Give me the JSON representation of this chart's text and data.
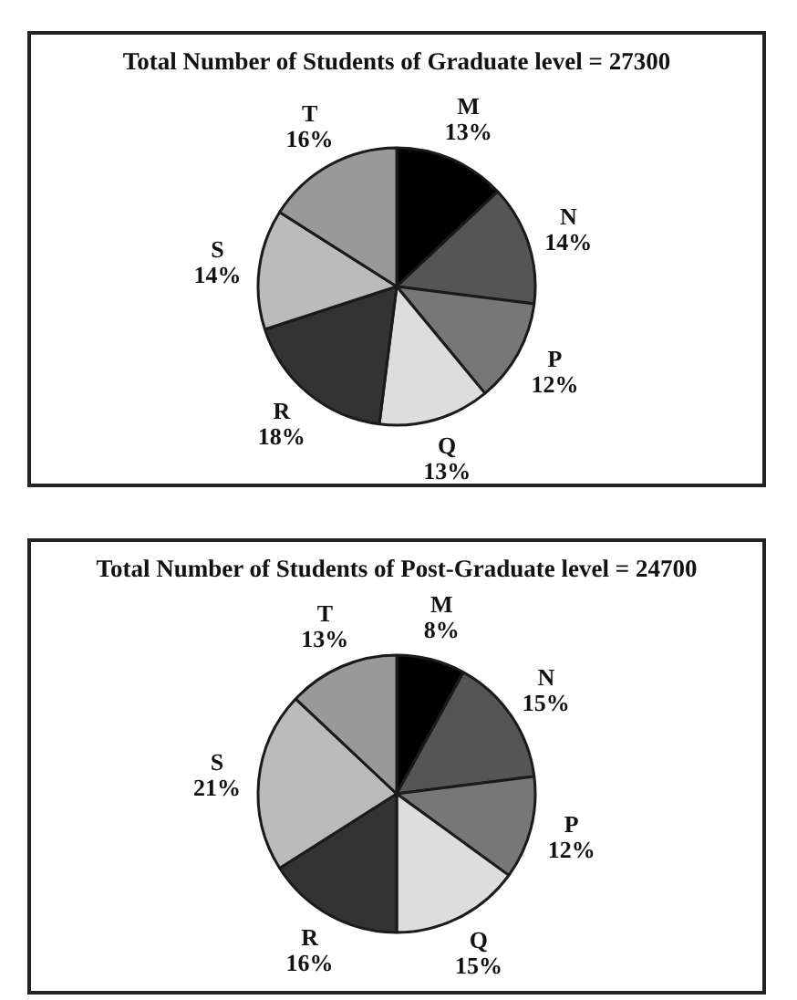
{
  "chart_data": [
    {
      "type": "pie",
      "title": "Total Number of Students of Graduate level = 27300",
      "categories": [
        "M",
        "N",
        "P",
        "Q",
        "R",
        "S",
        "T"
      ],
      "values": [
        13,
        14,
        12,
        13,
        18,
        14,
        16
      ],
      "colors": [
        "#000000",
        "#555555",
        "#777777",
        "#dddddd",
        "#333333",
        "#bbbbbb",
        "#999999"
      ],
      "value_labels": [
        "13%",
        "14%",
        "12%",
        "13%",
        "18%",
        "14%",
        "16%"
      ]
    },
    {
      "type": "pie",
      "title": "Total Number of Students of Post-Graduate level = 24700",
      "categories": [
        "M",
        "N",
        "P",
        "Q",
        "R",
        "S",
        "T"
      ],
      "values": [
        8,
        15,
        12,
        15,
        16,
        21,
        13
      ],
      "colors": [
        "#000000",
        "#555555",
        "#777777",
        "#dddddd",
        "#333333",
        "#bbbbbb",
        "#999999"
      ],
      "value_labels": [
        "8%",
        "15%",
        "12%",
        "15%",
        "16%",
        "21%",
        "13%"
      ]
    }
  ]
}
